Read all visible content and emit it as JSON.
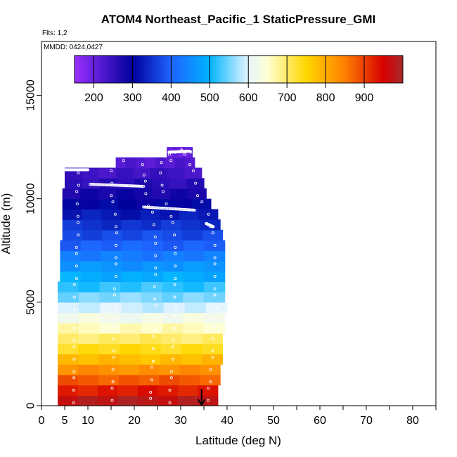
{
  "chart_data": {
    "type": "heatmap",
    "title": "ATOM4 Northeast_Pacific_1 StaticPressure_GMI",
    "flights_note": "Flts: 1,2",
    "date_note": "MMDD: 0424,0427",
    "xlabel": "Latitude (deg N)",
    "ylabel": "Altitude (m)",
    "xlim": [
      0,
      85
    ],
    "ylim": [
      0,
      17600
    ],
    "x_ticks": [
      0,
      5,
      10,
      20,
      30,
      40,
      50,
      60,
      70,
      80
    ],
    "y_ticks": [
      0,
      5000,
      10000,
      15000
    ],
    "grid": false,
    "colorbar": {
      "placement": "top",
      "range": [
        150,
        1000
      ],
      "tick_values": [
        200,
        300,
        400,
        500,
        600,
        700,
        800,
        900
      ],
      "stops": [
        {
          "value": 150,
          "color": "#9b30ff"
        },
        {
          "value": 300,
          "color": "#00009b"
        },
        {
          "value": 400,
          "color": "#1e63ff"
        },
        {
          "value": 500,
          "color": "#00b4ff"
        },
        {
          "value": 600,
          "color": "#e6f5ff"
        },
        {
          "value": 650,
          "color": "#ffffd2"
        },
        {
          "value": 750,
          "color": "#ffd700"
        },
        {
          "value": 850,
          "color": "#ff7f00"
        },
        {
          "value": 950,
          "color": "#d70000"
        },
        {
          "value": 1000,
          "color": "#a52a2a"
        }
      ]
    },
    "layers": [
      {
        "alt_min": 0,
        "alt_max": 500,
        "lat_min": 3.5,
        "lat_max": 38,
        "value": 980
      },
      {
        "alt_min": 500,
        "alt_max": 1000,
        "lat_min": 3.5,
        "lat_max": 38,
        "value": 930
      },
      {
        "alt_min": 1000,
        "alt_max": 1500,
        "lat_min": 3.5,
        "lat_max": 38.5,
        "value": 880
      },
      {
        "alt_min": 1500,
        "alt_max": 2000,
        "lat_min": 3.5,
        "lat_max": 38.5,
        "value": 830
      },
      {
        "alt_min": 2000,
        "alt_max": 2500,
        "lat_min": 3.5,
        "lat_max": 39,
        "value": 780
      },
      {
        "alt_min": 2500,
        "alt_max": 3000,
        "lat_min": 3.5,
        "lat_max": 39,
        "value": 740
      },
      {
        "alt_min": 3000,
        "alt_max": 3500,
        "lat_min": 3.5,
        "lat_max": 39,
        "value": 700
      },
      {
        "alt_min": 3500,
        "alt_max": 4000,
        "lat_min": 3.5,
        "lat_max": 39.5,
        "value": 660
      },
      {
        "alt_min": 4000,
        "alt_max": 4500,
        "lat_min": 3.5,
        "lat_max": 39.5,
        "value": 625
      },
      {
        "alt_min": 4500,
        "alt_max": 5000,
        "lat_min": 3.5,
        "lat_max": 40,
        "value": 590
      },
      {
        "alt_min": 5000,
        "alt_max": 5500,
        "lat_min": 3.5,
        "lat_max": 39.5,
        "value": 555
      },
      {
        "alt_min": 5500,
        "alt_max": 6000,
        "lat_min": 3.5,
        "lat_max": 39.5,
        "value": 520
      },
      {
        "alt_min": 6000,
        "alt_max": 6500,
        "lat_min": 4,
        "lat_max": 39.5,
        "value": 490
      },
      {
        "alt_min": 6500,
        "alt_max": 7000,
        "lat_min": 4,
        "lat_max": 39.5,
        "value": 460
      },
      {
        "alt_min": 7000,
        "alt_max": 7500,
        "lat_min": 4,
        "lat_max": 39.5,
        "value": 430
      },
      {
        "alt_min": 7500,
        "alt_max": 8000,
        "lat_min": 4,
        "lat_max": 39.5,
        "value": 400
      },
      {
        "alt_min": 8000,
        "alt_max": 8500,
        "lat_min": 4.5,
        "lat_max": 39,
        "value": 375
      },
      {
        "alt_min": 8500,
        "alt_max": 9000,
        "lat_min": 4.5,
        "lat_max": 38.5,
        "value": 350
      },
      {
        "alt_min": 9000,
        "alt_max": 9500,
        "lat_min": 4.5,
        "lat_max": 38,
        "value": 325
      },
      {
        "alt_min": 9500,
        "alt_max": 10000,
        "lat_min": 4.5,
        "lat_max": 36.5,
        "value": 300
      },
      {
        "alt_min": 10000,
        "alt_max": 10500,
        "lat_min": 4.5,
        "lat_max": 35.5,
        "value": 280
      },
      {
        "alt_min": 10500,
        "alt_max": 11000,
        "lat_min": 5,
        "lat_max": 35,
        "value": 260
      },
      {
        "alt_min": 11000,
        "alt_max": 11500,
        "lat_min": 5,
        "lat_max": 34.5,
        "value": 240
      },
      {
        "alt_min": 11500,
        "alt_max": 12000,
        "lat_min": 16,
        "lat_max": 33,
        "value": 220
      },
      {
        "alt_min": 12000,
        "alt_max": 12500,
        "lat_min": 27,
        "lat_max": 32.5,
        "value": 200
      }
    ],
    "flight_tracks": [
      {
        "lat_start": 5,
        "lat_end": 10,
        "alt_start": 11400,
        "alt_end": 11400
      },
      {
        "lat_start": 10.5,
        "lat_end": 22,
        "alt_start": 10700,
        "alt_end": 10600
      },
      {
        "lat_start": 22,
        "lat_end": 33,
        "alt_start": 9600,
        "alt_end": 9450
      },
      {
        "lat_start": 27.5,
        "lat_end": 32,
        "alt_start": 12250,
        "alt_end": 12300
      },
      {
        "lat_start": 35.5,
        "lat_end": 37,
        "alt_start": 8800,
        "alt_end": 8650
      }
    ],
    "arrow": {
      "lat": 34.5,
      "alt_from": 800,
      "alt_to": 0
    }
  }
}
